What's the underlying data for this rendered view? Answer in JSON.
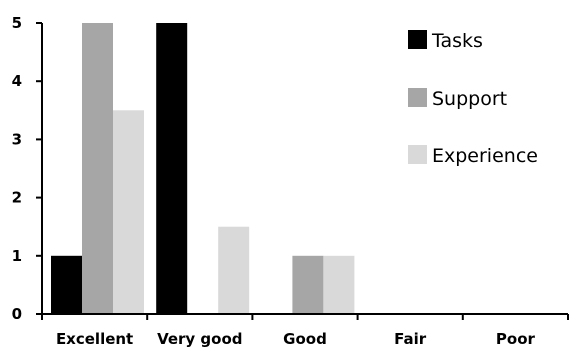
{
  "chart_data": {
    "type": "bar",
    "title": "",
    "xlabel": "",
    "ylabel": "",
    "categories": [
      "Excellent",
      "Very good",
      "Good",
      "Fair",
      "Poor"
    ],
    "series": [
      {
        "name": "Tasks",
        "values": [
          1,
          5,
          0,
          0,
          0
        ],
        "color": "#000000"
      },
      {
        "name": "Support",
        "values": [
          5,
          0,
          1,
          0,
          0
        ],
        "color": "#a6a6a6"
      },
      {
        "name": "Experience",
        "values": [
          3.5,
          1.5,
          1,
          0,
          0
        ],
        "color": "#d9d9d9"
      }
    ],
    "ylim": [
      0,
      5
    ],
    "yticks": [
      "0",
      "1",
      "2",
      "3",
      "4",
      "5"
    ],
    "grid": false,
    "legend_position": "top-right"
  }
}
